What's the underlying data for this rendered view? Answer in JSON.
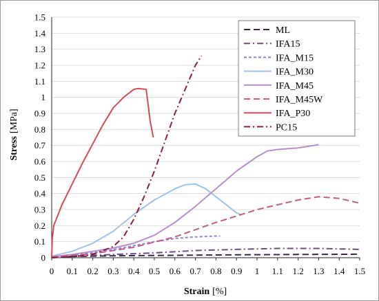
{
  "chart_data": {
    "type": "line",
    "title": "",
    "xlabel": "Strain",
    "xlabel_unit": "[%]",
    "ylabel": "Stress",
    "ylabel_unit": "[MPa]",
    "xlim": [
      0,
      1.5
    ],
    "ylim": [
      0,
      1.5
    ],
    "xticks": [
      "0",
      "0.1",
      "0.2",
      "0.3",
      "0.4",
      "0.5",
      "0.6",
      "0.7",
      "0.8",
      "0.9",
      "1",
      "1.1",
      "1.2",
      "1.3",
      "1.4",
      "1.5"
    ],
    "yticks": [
      "0",
      "0.1",
      "0.2",
      "0.3",
      "0.4",
      "0.5",
      "0.6",
      "0.7",
      "0.8",
      "0.9",
      "1",
      "1.1",
      "1.2",
      "1.3",
      "1.4",
      "1.5"
    ],
    "grid": "horizontal",
    "legend_position": "top-right",
    "series": [
      {
        "name": "ML",
        "color": "#3b2346",
        "dash": "long-dash",
        "points": [
          [
            0,
            0
          ],
          [
            0.1,
            0.008
          ],
          [
            0.3,
            0.012
          ],
          [
            0.6,
            0.015
          ],
          [
            0.9,
            0.018
          ],
          [
            1.2,
            0.02
          ],
          [
            1.5,
            0.022
          ]
        ]
      },
      {
        "name": "IFA15",
        "color": "#6b4a86",
        "dash": "dash-dot",
        "points": [
          [
            0,
            0
          ],
          [
            0.1,
            0.01
          ],
          [
            0.3,
            0.02
          ],
          [
            0.5,
            0.03
          ],
          [
            0.7,
            0.045
          ],
          [
            0.9,
            0.052
          ],
          [
            1.1,
            0.058
          ],
          [
            1.3,
            0.058
          ],
          [
            1.5,
            0.052
          ]
        ]
      },
      {
        "name": "IFA_M15",
        "color": "#8f7fd2",
        "dash": "short-dash",
        "points": [
          [
            0,
            0.005
          ],
          [
            0.1,
            0.015
          ],
          [
            0.2,
            0.03
          ],
          [
            0.3,
            0.05
          ],
          [
            0.4,
            0.075
          ],
          [
            0.5,
            0.1
          ],
          [
            0.6,
            0.12
          ],
          [
            0.7,
            0.13
          ],
          [
            0.8,
            0.135
          ],
          [
            0.82,
            0.135
          ]
        ]
      },
      {
        "name": "IFA_M30",
        "color": "#9fc0ea",
        "dash": "solid",
        "points": [
          [
            0,
            0.01
          ],
          [
            0.1,
            0.04
          ],
          [
            0.2,
            0.09
          ],
          [
            0.3,
            0.165
          ],
          [
            0.4,
            0.27
          ],
          [
            0.5,
            0.36
          ],
          [
            0.6,
            0.43
          ],
          [
            0.65,
            0.455
          ],
          [
            0.7,
            0.46
          ],
          [
            0.75,
            0.43
          ],
          [
            0.8,
            0.38
          ],
          [
            0.85,
            0.33
          ],
          [
            0.9,
            0.28
          ],
          [
            0.92,
            0.27
          ]
        ]
      },
      {
        "name": "IFA_M45",
        "color": "#b68ccd",
        "dash": "solid",
        "points": [
          [
            0,
            0.005
          ],
          [
            0.1,
            0.02
          ],
          [
            0.2,
            0.04
          ],
          [
            0.3,
            0.06
          ],
          [
            0.4,
            0.09
          ],
          [
            0.5,
            0.14
          ],
          [
            0.6,
            0.22
          ],
          [
            0.7,
            0.32
          ],
          [
            0.8,
            0.43
          ],
          [
            0.9,
            0.54
          ],
          [
            1.0,
            0.63
          ],
          [
            1.05,
            0.665
          ],
          [
            1.1,
            0.675
          ],
          [
            1.2,
            0.685
          ],
          [
            1.3,
            0.705
          ]
        ]
      },
      {
        "name": "IFA_M45W",
        "color": "#c05b88",
        "dash": "long-dash",
        "points": [
          [
            0,
            0.005
          ],
          [
            0.2,
            0.025
          ],
          [
            0.4,
            0.065
          ],
          [
            0.6,
            0.13
          ],
          [
            0.8,
            0.22
          ],
          [
            1.0,
            0.3
          ],
          [
            1.1,
            0.33
          ],
          [
            1.2,
            0.36
          ],
          [
            1.3,
            0.38
          ],
          [
            1.4,
            0.37
          ],
          [
            1.5,
            0.34
          ]
        ]
      },
      {
        "name": "IFA_P30",
        "color": "#d44a58",
        "dash": "solid",
        "points": [
          [
            0,
            0.0
          ],
          [
            0.003,
            0.12
          ],
          [
            0.01,
            0.2
          ],
          [
            0.05,
            0.33
          ],
          [
            0.1,
            0.46
          ],
          [
            0.15,
            0.59
          ],
          [
            0.2,
            0.71
          ],
          [
            0.25,
            0.83
          ],
          [
            0.3,
            0.935
          ],
          [
            0.35,
            1.0
          ],
          [
            0.4,
            1.05
          ],
          [
            0.42,
            1.055
          ],
          [
            0.46,
            1.05
          ],
          [
            0.47,
            0.95
          ],
          [
            0.48,
            0.85
          ],
          [
            0.495,
            0.75
          ]
        ]
      },
      {
        "name": "PC15",
        "color": "#8a1f39",
        "dash": "dash-dot",
        "points": [
          [
            0,
            0
          ],
          [
            0.1,
            0.005
          ],
          [
            0.2,
            0.02
          ],
          [
            0.3,
            0.07
          ],
          [
            0.35,
            0.13
          ],
          [
            0.4,
            0.24
          ],
          [
            0.45,
            0.38
          ],
          [
            0.5,
            0.54
          ],
          [
            0.55,
            0.72
          ],
          [
            0.6,
            0.9
          ],
          [
            0.65,
            1.05
          ],
          [
            0.7,
            1.2
          ],
          [
            0.73,
            1.26
          ]
        ]
      }
    ]
  }
}
